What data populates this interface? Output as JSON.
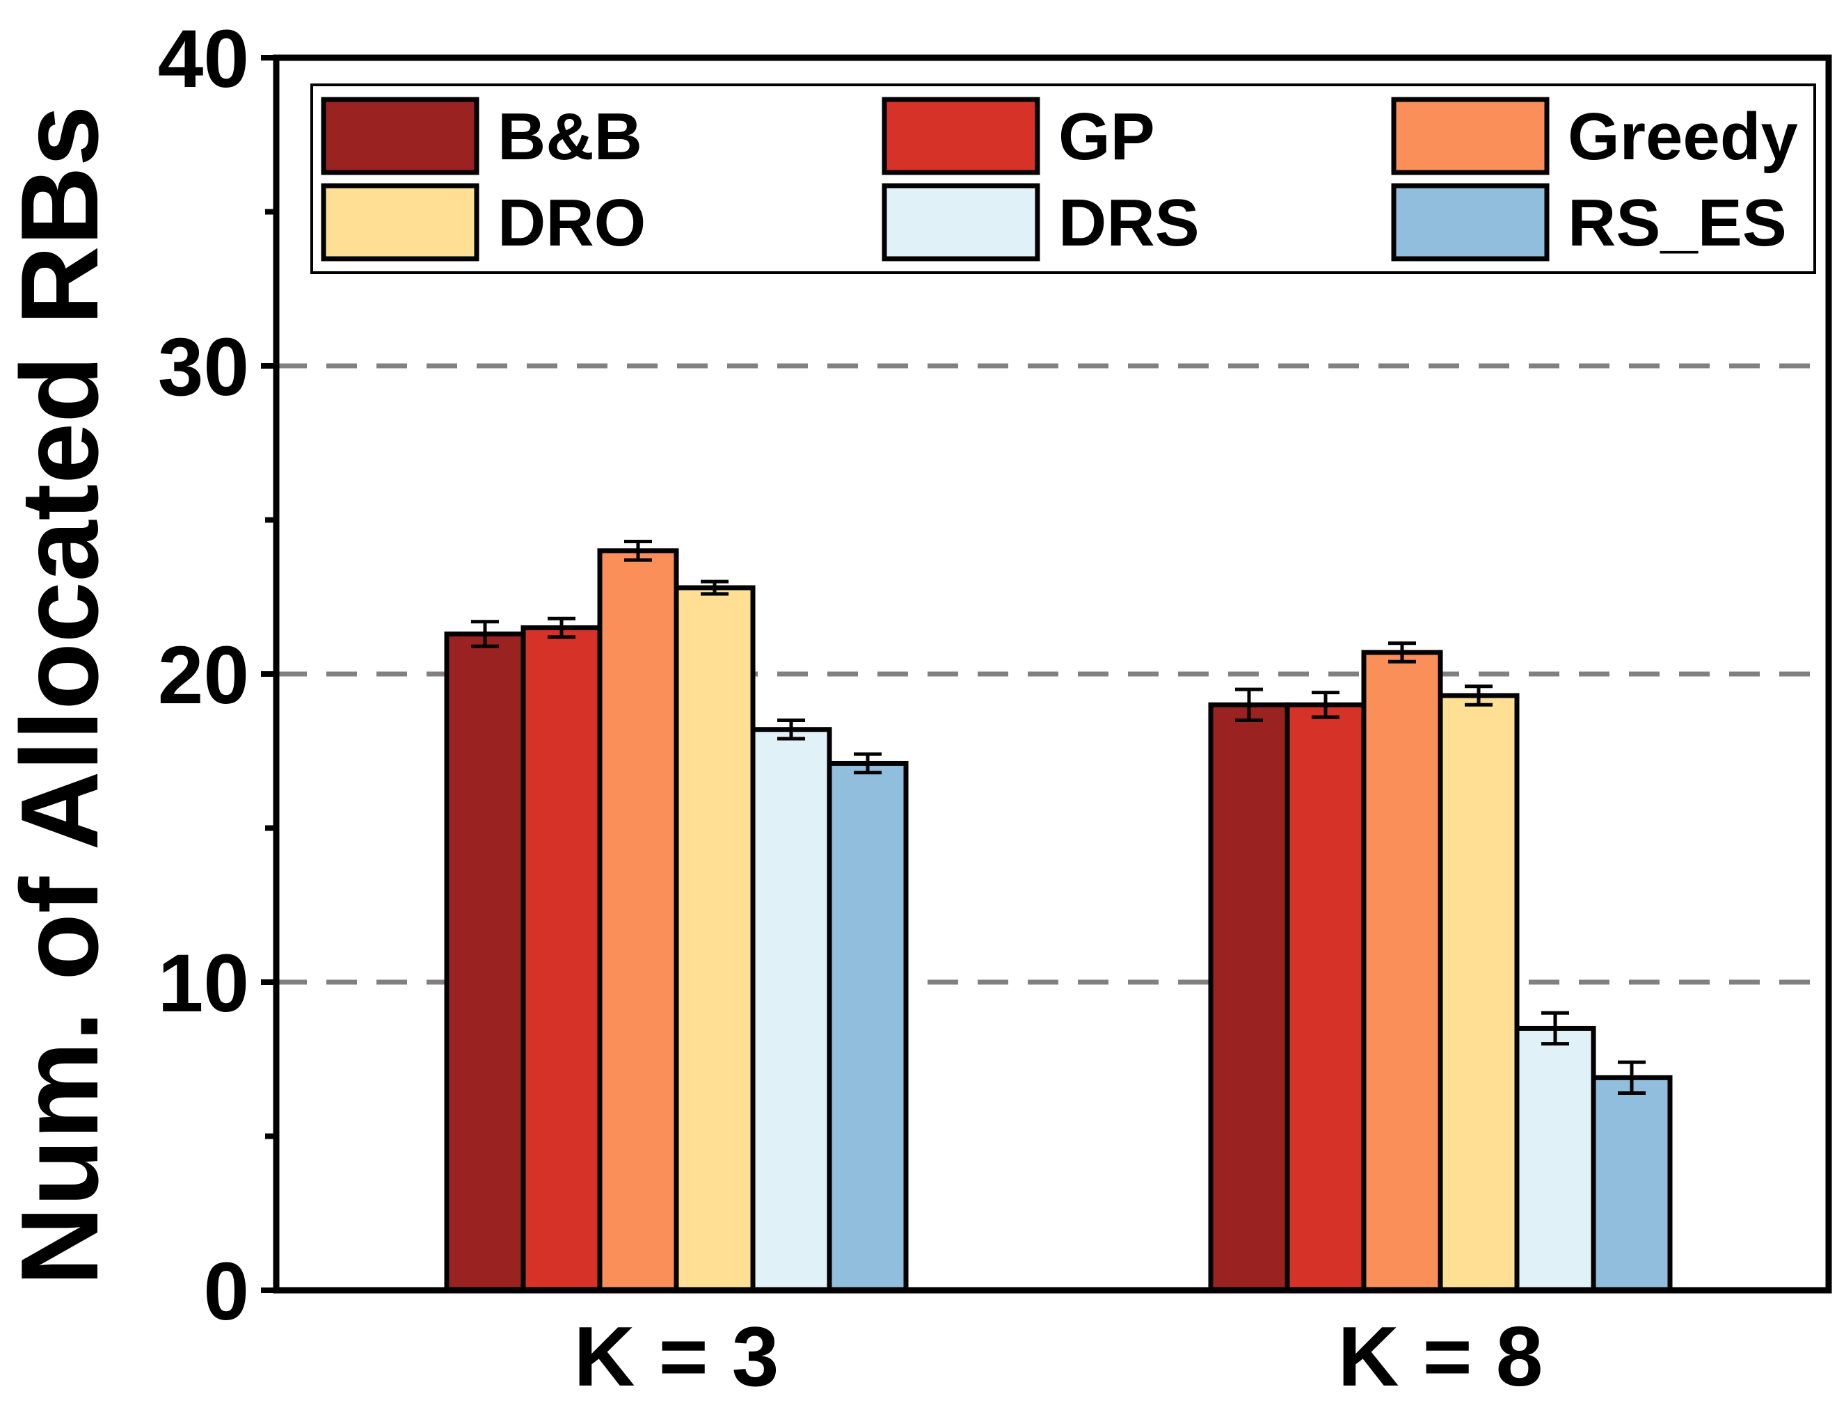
{
  "chart_data": {
    "type": "bar",
    "title": "",
    "xlabel": "",
    "ylabel": "Num. of Allocated RBs",
    "ylim": [
      0,
      40
    ],
    "yticks": [
      0,
      10,
      20,
      30,
      40
    ],
    "grid": "dashed horizontal at 10, 20, 30",
    "legend_position": "top",
    "categories": [
      "K = 3",
      "K = 8"
    ],
    "series": [
      {
        "name": "B&B",
        "color": "#9A2220",
        "values": [
          21.3,
          19.0
        ],
        "errors": [
          0.4,
          0.5
        ]
      },
      {
        "name": "GP",
        "color": "#D63227",
        "values": [
          21.5,
          19.0
        ],
        "errors": [
          0.3,
          0.4
        ]
      },
      {
        "name": "Greedy",
        "color": "#FA8F5A",
        "values": [
          24.0,
          20.7
        ],
        "errors": [
          0.3,
          0.3
        ]
      },
      {
        "name": "DRO",
        "color": "#FEDF93",
        "values": [
          22.8,
          19.3
        ],
        "errors": [
          0.2,
          0.3
        ]
      },
      {
        "name": "DRS",
        "color": "#E0F2F8",
        "values": [
          18.2,
          8.5
        ],
        "errors": [
          0.3,
          0.5
        ]
      },
      {
        "name": "RS_ES",
        "color": "#90BEDC",
        "values": [
          17.1,
          6.9
        ],
        "errors": [
          0.3,
          0.5
        ]
      }
    ]
  }
}
